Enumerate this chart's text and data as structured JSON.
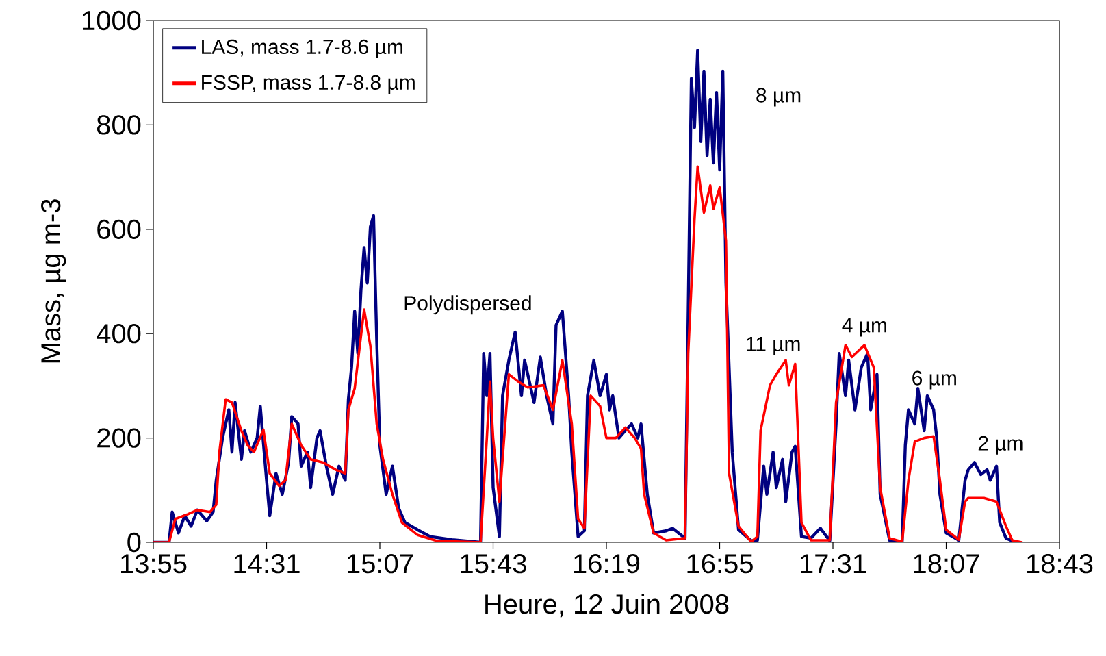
{
  "chart_data": {
    "type": "line",
    "xlabel": "Heure, 12 Juin 2008",
    "ylabel": "Mass, µg m-3",
    "xlim": [
      "2008-06-12T13:55",
      "2008-06-12T18:43"
    ],
    "ylim": [
      0,
      1000
    ],
    "yticks": [
      0,
      200,
      400,
      600,
      800,
      1000
    ],
    "xticks": [
      {
        "value": "2008-06-12T13:55",
        "label": "13:55"
      },
      {
        "value": "2008-06-12T14:31",
        "label": "14:31"
      },
      {
        "value": "2008-06-12T15:07",
        "label": "15:07"
      },
      {
        "value": "2008-06-12T15:43",
        "label": "15:43"
      },
      {
        "value": "2008-06-12T16:19",
        "label": "16:19"
      },
      {
        "value": "2008-06-12T16:55",
        "label": "16:55"
      },
      {
        "value": "2008-06-12T17:31",
        "label": "17:31"
      },
      {
        "value": "2008-06-12T18:07",
        "label": "18:07"
      },
      {
        "value": "2008-06-12T18:43",
        "label": "18:43"
      }
    ],
    "legend": "top left",
    "grid": false,
    "marker": "none",
    "line_style": "solid",
    "series": [
      {
        "name": "LAS, mass 1.7-8.6 µm",
        "color": "#000080",
        "x": [
          "2008-06-12T13:55",
          "2008-06-12T14:00",
          "2008-06-12T14:01",
          "2008-06-12T14:03",
          "2008-06-12T14:05",
          "2008-06-12T14:07",
          "2008-06-12T14:09",
          "2008-06-12T14:12",
          "2008-06-12T14:14",
          "2008-06-12T14:15",
          "2008-06-12T14:17",
          "2008-06-12T14:19",
          "2008-06-12T14:20",
          "2008-06-12T14:21",
          "2008-06-12T14:23",
          "2008-06-12T14:24",
          "2008-06-12T14:26",
          "2008-06-12T14:28",
          "2008-06-12T14:29",
          "2008-06-12T14:31",
          "2008-06-12T14:32",
          "2008-06-12T14:34",
          "2008-06-12T14:36",
          "2008-06-12T14:38",
          "2008-06-12T14:39",
          "2008-06-12T14:41",
          "2008-06-12T14:42",
          "2008-06-12T14:44",
          "2008-06-12T14:45",
          "2008-06-12T14:47",
          "2008-06-12T14:48",
          "2008-06-12T14:50",
          "2008-06-12T14:52",
          "2008-06-12T14:54",
          "2008-06-12T14:56",
          "2008-06-12T14:57",
          "2008-06-12T14:58",
          "2008-06-12T14:59",
          "2008-06-12T15:00",
          "2008-06-12T15:01",
          "2008-06-12T15:02",
          "2008-06-12T15:03",
          "2008-06-12T15:04",
          "2008-06-12T15:05",
          "2008-06-12T15:06",
          "2008-06-12T15:07",
          "2008-06-12T15:09",
          "2008-06-12T15:11",
          "2008-06-12T15:13",
          "2008-06-12T15:15",
          "2008-06-12T15:19",
          "2008-06-12T15:23",
          "2008-06-12T15:30",
          "2008-06-12T15:39",
          "2008-06-12T15:40",
          "2008-06-12T15:41",
          "2008-06-12T15:42",
          "2008-06-12T15:43",
          "2008-06-12T15:45",
          "2008-06-12T15:46",
          "2008-06-12T15:48",
          "2008-06-12T15:50",
          "2008-06-12T15:52",
          "2008-06-12T15:53",
          "2008-06-12T15:56",
          "2008-06-12T15:58",
          "2008-06-12T16:00",
          "2008-06-12T16:02",
          "2008-06-12T16:03",
          "2008-06-12T16:05",
          "2008-06-12T16:07",
          "2008-06-12T16:08",
          "2008-06-12T16:10",
          "2008-06-12T16:12",
          "2008-06-12T16:13",
          "2008-06-12T16:15",
          "2008-06-12T16:17",
          "2008-06-12T16:19",
          "2008-06-12T16:20",
          "2008-06-12T16:21",
          "2008-06-12T16:23",
          "2008-06-12T16:25",
          "2008-06-12T16:27",
          "2008-06-12T16:29",
          "2008-06-12T16:30",
          "2008-06-12T16:32",
          "2008-06-12T16:34",
          "2008-06-12T16:38",
          "2008-06-12T16:40",
          "2008-06-12T16:44",
          "2008-06-12T16:45",
          "2008-06-12T16:46",
          "2008-06-12T16:47",
          "2008-06-12T16:48",
          "2008-06-12T16:49",
          "2008-06-12T16:50",
          "2008-06-12T16:51",
          "2008-06-12T16:52",
          "2008-06-12T16:53",
          "2008-06-12T16:54",
          "2008-06-12T16:55",
          "2008-06-12T16:56",
          "2008-06-12T16:57",
          "2008-06-12T16:59",
          "2008-06-12T17:01",
          "2008-06-12T17:05",
          "2008-06-12T17:07",
          "2008-06-12T17:09",
          "2008-06-12T17:10",
          "2008-06-12T17:12",
          "2008-06-12T17:13",
          "2008-06-12T17:15",
          "2008-06-12T17:16",
          "2008-06-12T17:18",
          "2008-06-12T17:19",
          "2008-06-12T17:21",
          "2008-06-12T17:24",
          "2008-06-12T17:27",
          "2008-06-12T17:30",
          "2008-06-12T17:32",
          "2008-06-12T17:33",
          "2008-06-12T17:35",
          "2008-06-12T17:36",
          "2008-06-12T17:38",
          "2008-06-12T17:40",
          "2008-06-12T17:42",
          "2008-06-12T17:43",
          "2008-06-12T17:45",
          "2008-06-12T17:46",
          "2008-06-12T17:49",
          "2008-06-12T17:53",
          "2008-06-12T17:54",
          "2008-06-12T17:55",
          "2008-06-12T17:57",
          "2008-06-12T17:58",
          "2008-06-12T18:00",
          "2008-06-12T18:01",
          "2008-06-12T18:03",
          "2008-06-12T18:04",
          "2008-06-12T18:05",
          "2008-06-12T18:07",
          "2008-06-12T18:11",
          "2008-06-12T18:13",
          "2008-06-12T18:14",
          "2008-06-12T18:16",
          "2008-06-12T18:18",
          "2008-06-12T18:20",
          "2008-06-12T18:21",
          "2008-06-12T18:23",
          "2008-06-12T18:24",
          "2008-06-12T18:26",
          "2008-06-12T18:29"
        ],
        "values": [
          0,
          0,
          58,
          18,
          51,
          31,
          62,
          41,
          58,
          119,
          200,
          254,
          173,
          268,
          159,
          214,
          173,
          200,
          261,
          119,
          51,
          132,
          92,
          153,
          241,
          227,
          146,
          173,
          105,
          200,
          214,
          146,
          92,
          146,
          119,
          274,
          335,
          443,
          362,
          484,
          565,
          497,
          605,
          626,
          389,
          186,
          92,
          146,
          65,
          38,
          24,
          11,
          5,
          0,
          362,
          281,
          362,
          105,
          11,
          281,
          349,
          403,
          281,
          349,
          268,
          355,
          281,
          227,
          416,
          443,
          281,
          173,
          11,
          22,
          281,
          349,
          281,
          322,
          254,
          281,
          200,
          214,
          227,
          200,
          227,
          92,
          18,
          22,
          27,
          8,
          443,
          889,
          795,
          943,
          768,
          903,
          741,
          849,
          727,
          862,
          714,
          903,
          497,
          173,
          24,
          3,
          4,
          146,
          92,
          173,
          105,
          159,
          78,
          173,
          184,
          11,
          8,
          27,
          3,
          227,
          362,
          281,
          349,
          254,
          335,
          362,
          254,
          322,
          92,
          4,
          1,
          186,
          254,
          227,
          295,
          214,
          281,
          254,
          200,
          92,
          18,
          4,
          119,
          139,
          153,
          130,
          139,
          119,
          146,
          38,
          8,
          0
        ]
      },
      {
        "name": "FSSP, mass 1.7-8.8 µm",
        "color": "#ff0000",
        "x": [
          "2008-06-12T13:55",
          "2008-06-12T14:00",
          "2008-06-12T14:02",
          "2008-06-12T14:06",
          "2008-06-12T14:09",
          "2008-06-12T14:13",
          "2008-06-12T14:15",
          "2008-06-12T14:16",
          "2008-06-12T14:18",
          "2008-06-12T14:20",
          "2008-06-12T14:23",
          "2008-06-12T14:25",
          "2008-06-12T14:27",
          "2008-06-12T14:30",
          "2008-06-12T14:32",
          "2008-06-12T14:35",
          "2008-06-12T14:37",
          "2008-06-12T14:39",
          "2008-06-12T14:42",
          "2008-06-12T14:45",
          "2008-06-12T14:49",
          "2008-06-12T14:53",
          "2008-06-12T14:56",
          "2008-06-12T14:57",
          "2008-06-12T14:59",
          "2008-06-12T15:02",
          "2008-06-12T15:04",
          "2008-06-12T15:06",
          "2008-06-12T15:08",
          "2008-06-12T15:11",
          "2008-06-12T15:14",
          "2008-06-12T15:19",
          "2008-06-12T15:25",
          "2008-06-12T15:39",
          "2008-06-12T15:41",
          "2008-06-12T15:42",
          "2008-06-12T15:43",
          "2008-06-12T15:45",
          "2008-06-12T15:48",
          "2008-06-12T15:51",
          "2008-06-12T15:54",
          "2008-06-12T15:59",
          "2008-06-12T16:02",
          "2008-06-12T16:05",
          "2008-06-12T16:08",
          "2008-06-12T16:10",
          "2008-06-12T16:12",
          "2008-06-12T16:14",
          "2008-06-12T16:17",
          "2008-06-12T16:19",
          "2008-06-12T16:22",
          "2008-06-12T16:25",
          "2008-06-12T16:28",
          "2008-06-12T16:30",
          "2008-06-12T16:31",
          "2008-06-12T16:34",
          "2008-06-12T16:38",
          "2008-06-12T16:44",
          "2008-06-12T16:45",
          "2008-06-12T16:47",
          "2008-06-12T16:48",
          "2008-06-12T16:50",
          "2008-06-12T16:52",
          "2008-06-12T16:53",
          "2008-06-12T16:55",
          "2008-06-12T16:57",
          "2008-06-12T16:58",
          "2008-06-12T17:01",
          "2008-06-12T17:05",
          "2008-06-12T17:07",
          "2008-06-12T17:08",
          "2008-06-12T17:11",
          "2008-06-12T17:13",
          "2008-06-12T17:16",
          "2008-06-12T17:17",
          "2008-06-12T17:19",
          "2008-06-12T17:21",
          "2008-06-12T17:24",
          "2008-06-12T17:30",
          "2008-06-12T17:32",
          "2008-06-12T17:35",
          "2008-06-12T17:37",
          "2008-06-12T17:41",
          "2008-06-12T17:44",
          "2008-06-12T17:46",
          "2008-06-12T17:49",
          "2008-06-12T17:53",
          "2008-06-12T17:55",
          "2008-06-12T17:57",
          "2008-06-12T18:00",
          "2008-06-12T18:03",
          "2008-06-12T18:05",
          "2008-06-12T18:07",
          "2008-06-12T18:11",
          "2008-06-12T18:13",
          "2008-06-12T18:14",
          "2008-06-12T18:19",
          "2008-06-12T18:23",
          "2008-06-12T18:26",
          "2008-06-12T18:28",
          "2008-06-12T18:31"
        ],
        "values": [
          0,
          0,
          45,
          54,
          62,
          58,
          72,
          173,
          274,
          268,
          214,
          186,
          173,
          216,
          132,
          108,
          119,
          227,
          186,
          159,
          153,
          139,
          132,
          254,
          295,
          446,
          376,
          227,
          159,
          92,
          38,
          14,
          3,
          0,
          200,
          308,
          200,
          78,
          322,
          308,
          297,
          301,
          254,
          349,
          227,
          45,
          27,
          281,
          261,
          200,
          200,
          220,
          200,
          180,
          92,
          18,
          4,
          8,
          362,
          619,
          720,
          632,
          684,
          639,
          680,
          578,
          132,
          31,
          1,
          11,
          214,
          301,
          322,
          349,
          301,
          342,
          38,
          4,
          4,
          268,
          378,
          355,
          378,
          335,
          105,
          8,
          1,
          119,
          193,
          200,
          203,
          119,
          24,
          5,
          78,
          85,
          85,
          78,
          31,
          4,
          0
        ]
      }
    ],
    "annotations": [
      "Polydispersed",
      "8 µm",
      "11 µm",
      "4 µm",
      "6 µm",
      "2 µm"
    ]
  }
}
